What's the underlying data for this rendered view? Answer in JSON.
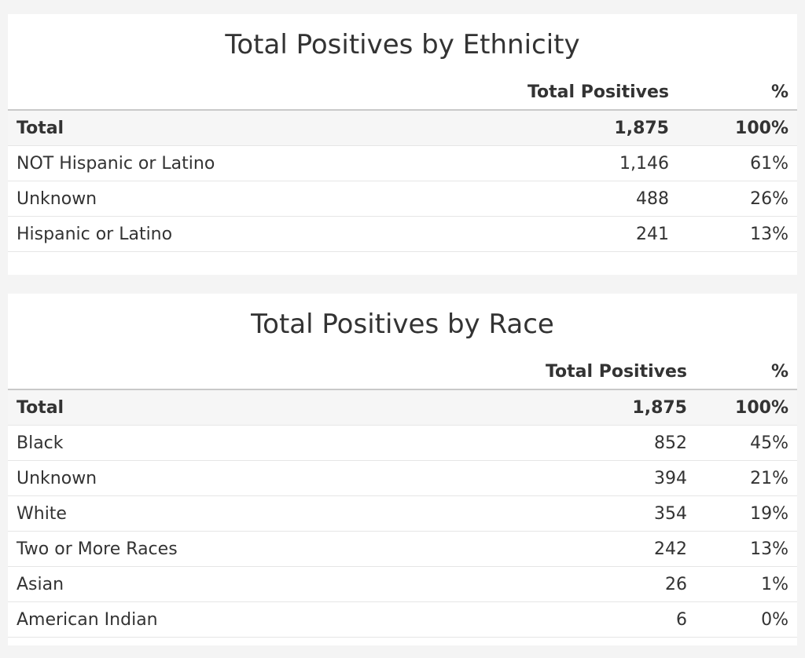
{
  "ethnicity_table": {
    "title": "Total Positives by Ethnicity",
    "headers": {
      "label": "",
      "count": "Total Positives",
      "pct": "%"
    },
    "rows": [
      {
        "label": "Total",
        "count": "1,875",
        "pct": "100%"
      },
      {
        "label": "NOT Hispanic or Latino",
        "count": "1,146",
        "pct": "61%"
      },
      {
        "label": "Unknown",
        "count": "488",
        "pct": "26%"
      },
      {
        "label": "Hispanic or Latino",
        "count": "241",
        "pct": "13%"
      }
    ]
  },
  "race_table": {
    "title": "Total Positives by Race",
    "headers": {
      "label": "",
      "count": "Total Positives",
      "pct": "%"
    },
    "rows": [
      {
        "label": "Total",
        "count": "1,875",
        "pct": "100%"
      },
      {
        "label": "Black",
        "count": "852",
        "pct": "45%"
      },
      {
        "label": "Unknown",
        "count": "394",
        "pct": "21%"
      },
      {
        "label": "White",
        "count": "354",
        "pct": "19%"
      },
      {
        "label": "Two or More Races",
        "count": "242",
        "pct": "13%"
      },
      {
        "label": "Asian",
        "count": "26",
        "pct": "1%"
      },
      {
        "label": "American Indian",
        "count": "6",
        "pct": "0%"
      }
    ]
  }
}
